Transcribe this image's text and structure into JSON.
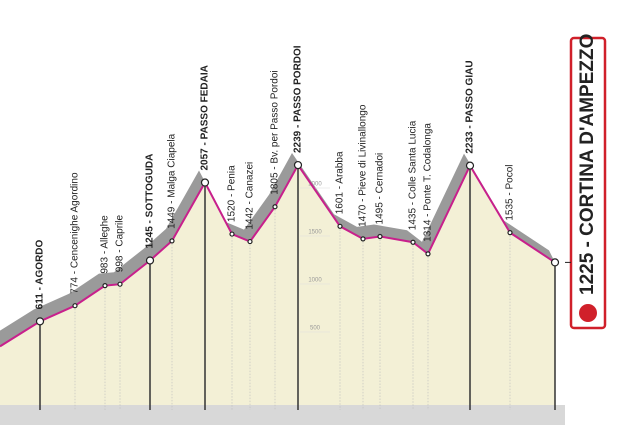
{
  "chart_data": {
    "type": "profile",
    "categories": [
      "611 - AGORDO",
      "774 - Cencenighe Agordino",
      "983 - Alleghe",
      "998 - Caprile",
      "1245 - SOTTOGUDA",
      "1449 - Malga Ciapela",
      "2057 - PASSO FEDAIA",
      "1520 - Penia",
      "1442 - Canazei",
      "1805 - Bv. per Passo Pordoi",
      "2239 - PASSO PORDOI",
      "1601 - Arabba",
      "1470 - Pieve di Livinallongo",
      "1495 - Cernadoi",
      "1435 - Colle Santa Lucia",
      "1314 - Ponte T. Codalonga",
      "2233 - PASSO GIAU",
      "1535 - Pocol",
      "1225 - CORTINA D'AMPEZZO"
    ],
    "values": [
      611,
      774,
      983,
      998,
      1245,
      1449,
      2057,
      1520,
      1442,
      1805,
      2239,
      1601,
      1470,
      1495,
      1435,
      1314,
      2233,
      1535,
      1225
    ],
    "ylim": [
      0,
      2500
    ],
    "yticks": [
      500,
      1000,
      1500,
      2000
    ],
    "color": "#c8208c",
    "fill": "#9a9a9a"
  }
}
